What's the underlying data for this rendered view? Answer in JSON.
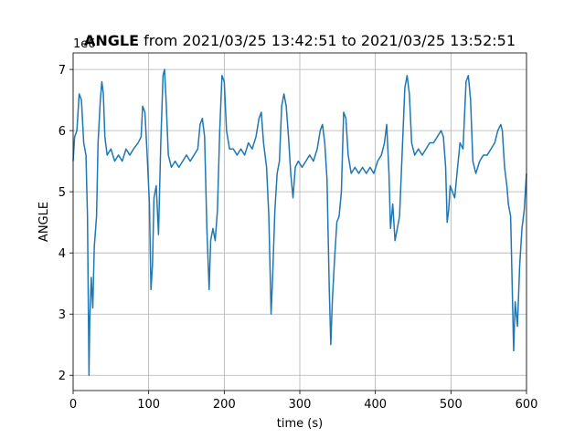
{
  "chart_data": {
    "type": "line",
    "title": {
      "bold": "ANGLE",
      "text": " from 2021/03/25 13:42:51 to 2021/03/25 13:52:51"
    },
    "x_label": "time (s)",
    "y_label": "ANGLE",
    "y_offset": "1e6",
    "xlim": [
      0,
      600
    ],
    "xticks": [
      0,
      100,
      200,
      300,
      400,
      500,
      600
    ],
    "ylim": [
      1.75,
      7.27
    ],
    "yticks": [
      2,
      3,
      4,
      5,
      6,
      7
    ],
    "grid": true,
    "x": [
      0,
      2,
      5,
      8,
      11,
      14,
      17,
      19,
      21,
      22,
      24,
      26,
      28,
      31,
      33,
      36,
      38,
      40,
      42,
      45,
      50,
      55,
      60,
      65,
      70,
      75,
      80,
      86,
      90,
      92,
      95,
      98,
      101,
      103,
      105,
      107,
      110,
      113,
      116,
      119,
      121,
      123,
      126,
      130,
      135,
      140,
      145,
      150,
      155,
      160,
      165,
      168,
      171,
      174,
      177,
      180,
      182,
      185,
      188,
      191,
      194,
      197,
      200,
      203,
      207,
      212,
      217,
      222,
      227,
      232,
      237,
      242,
      246,
      249,
      252,
      256,
      259,
      262,
      264,
      267,
      270,
      273,
      276,
      279,
      282,
      285,
      288,
      291,
      294,
      298,
      303,
      308,
      313,
      318,
      323,
      327,
      330,
      333,
      336,
      339,
      341,
      343,
      346,
      349,
      352,
      355,
      358,
      361,
      364,
      368,
      373,
      378,
      383,
      388,
      393,
      398,
      403,
      408,
      412,
      415,
      418,
      420,
      423,
      426,
      429,
      432,
      436,
      439,
      442,
      445,
      448,
      452,
      457,
      462,
      467,
      472,
      477,
      482,
      487,
      490,
      493,
      495,
      497,
      499,
      502,
      505,
      508,
      512,
      516,
      520,
      523,
      526,
      529,
      533,
      538,
      543,
      548,
      553,
      558,
      562,
      566,
      568,
      571,
      574,
      576,
      579,
      581,
      583,
      585,
      588,
      591,
      594,
      597,
      600
    ],
    "series": [
      {
        "name": "ANGLE",
        "color": "#1f77b4",
        "values": [
          5.5,
          5.9,
          6.0,
          6.6,
          6.5,
          5.8,
          5.6,
          4.6,
          2.0,
          2.9,
          3.6,
          3.1,
          4.1,
          4.6,
          5.8,
          6.5,
          6.8,
          6.6,
          5.9,
          5.6,
          5.7,
          5.5,
          5.6,
          5.5,
          5.7,
          5.6,
          5.7,
          5.8,
          5.9,
          6.4,
          6.3,
          5.6,
          4.8,
          3.4,
          3.8,
          4.9,
          5.1,
          4.3,
          5.8,
          6.9,
          7.0,
          6.5,
          5.6,
          5.4,
          5.5,
          5.4,
          5.5,
          5.6,
          5.5,
          5.6,
          5.7,
          6.1,
          6.2,
          5.9,
          4.4,
          3.4,
          4.2,
          4.4,
          4.2,
          4.7,
          6.0,
          6.9,
          6.8,
          6.0,
          5.7,
          5.7,
          5.6,
          5.7,
          5.6,
          5.8,
          5.7,
          5.9,
          6.2,
          6.3,
          5.8,
          5.4,
          4.6,
          3.0,
          3.6,
          4.7,
          5.3,
          5.5,
          6.4,
          6.6,
          6.4,
          5.9,
          5.3,
          4.9,
          5.4,
          5.5,
          5.4,
          5.5,
          5.6,
          5.5,
          5.7,
          6.0,
          6.1,
          5.8,
          5.2,
          3.4,
          2.5,
          3.2,
          3.9,
          4.5,
          4.6,
          5.0,
          6.3,
          6.2,
          5.6,
          5.3,
          5.4,
          5.3,
          5.4,
          5.3,
          5.4,
          5.3,
          5.5,
          5.6,
          5.8,
          6.1,
          5.3,
          4.4,
          4.8,
          4.2,
          4.4,
          4.6,
          5.8,
          6.7,
          6.9,
          6.6,
          5.8,
          5.6,
          5.7,
          5.6,
          5.7,
          5.8,
          5.8,
          5.9,
          6.0,
          5.9,
          5.4,
          4.5,
          4.7,
          5.1,
          5.0,
          4.9,
          5.3,
          5.8,
          5.7,
          6.8,
          6.9,
          6.5,
          5.5,
          5.3,
          5.5,
          5.6,
          5.6,
          5.7,
          5.8,
          6.0,
          6.1,
          6.0,
          5.4,
          5.1,
          4.8,
          4.6,
          3.5,
          2.4,
          3.2,
          2.8,
          3.8,
          4.4,
          4.7,
          5.3
        ]
      }
    ]
  }
}
